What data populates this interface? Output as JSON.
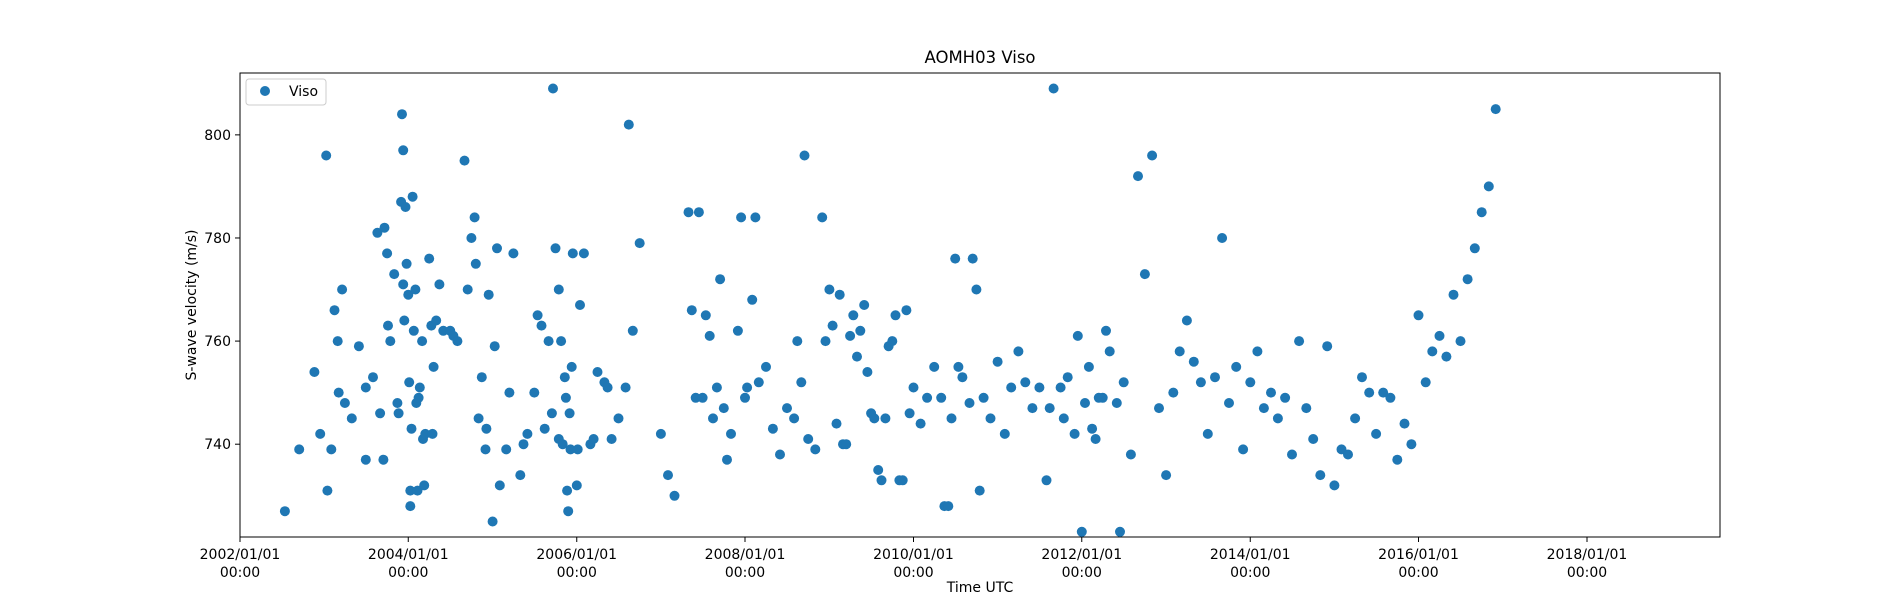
{
  "chart_data": {
    "type": "scatter",
    "title": "AOMH03 Viso",
    "xlabel": "Time UTC",
    "ylabel": "S-wave velocity (m/s)",
    "xlim": [
      "2002-01-01",
      "2019-08-01"
    ],
    "ylim": [
      722,
      812
    ],
    "grid": false,
    "legend_position": "top-left",
    "color": "#1f77b4",
    "x_ticks": [
      {
        "line1": "2002/01/01",
        "line2": "00:00",
        "date": "2002-01-01"
      },
      {
        "line1": "2004/01/01",
        "line2": "00:00",
        "date": "2004-01-01"
      },
      {
        "line1": "2006/01/01",
        "line2": "00:00",
        "date": "2006-01-01"
      },
      {
        "line1": "2008/01/01",
        "line2": "00:00",
        "date": "2008-01-01"
      },
      {
        "line1": "2010/01/01",
        "line2": "00:00",
        "date": "2010-01-01"
      },
      {
        "line1": "2012/01/01",
        "line2": "00:00",
        "date": "2012-01-01"
      },
      {
        "line1": "2014/01/01",
        "line2": "00:00",
        "date": "2014-01-01"
      },
      {
        "line1": "2016/01/01",
        "line2": "00:00",
        "date": "2016-01-01"
      },
      {
        "line1": "2018/01/01",
        "line2": "00:00",
        "date": "2018-01-01"
      }
    ],
    "y_ticks": [
      740,
      760,
      780,
      800
    ],
    "series": [
      {
        "name": "Viso",
        "points": [
          [
            "2002-07-15",
            727
          ],
          [
            "2002-09-15",
            739
          ],
          [
            "2002-11-20",
            754
          ],
          [
            "2002-12-15",
            742
          ],
          [
            "2003-01-10",
            796
          ],
          [
            "2003-01-15",
            731
          ],
          [
            "2003-02-01",
            739
          ],
          [
            "2003-02-15",
            766
          ],
          [
            "2003-03-01",
            760
          ],
          [
            "2003-03-05",
            750
          ],
          [
            "2003-03-20",
            770
          ],
          [
            "2003-04-01",
            748
          ],
          [
            "2003-05-01",
            745
          ],
          [
            "2003-06-01",
            759
          ],
          [
            "2003-07-01",
            737
          ],
          [
            "2003-07-01",
            751
          ],
          [
            "2003-08-01",
            753
          ],
          [
            "2003-08-20",
            781
          ],
          [
            "2003-09-01",
            746
          ],
          [
            "2003-09-15",
            737
          ],
          [
            "2003-09-20",
            782
          ],
          [
            "2003-10-01",
            777
          ],
          [
            "2003-10-05",
            763
          ],
          [
            "2003-10-15",
            760
          ],
          [
            "2003-11-01",
            773
          ],
          [
            "2003-11-15",
            748
          ],
          [
            "2003-11-20",
            746
          ],
          [
            "2003-12-01",
            787
          ],
          [
            "2003-12-05",
            804
          ],
          [
            "2003-12-10",
            797
          ],
          [
            "2003-12-10",
            771
          ],
          [
            "2003-12-15",
            764
          ],
          [
            "2003-12-20",
            786
          ],
          [
            "2003-12-25",
            775
          ],
          [
            "2004-01-01",
            769
          ],
          [
            "2004-01-05",
            752
          ],
          [
            "2004-01-10",
            731
          ],
          [
            "2004-01-10",
            728
          ],
          [
            "2004-01-15",
            743
          ],
          [
            "2004-01-20",
            788
          ],
          [
            "2004-01-25",
            762
          ],
          [
            "2004-02-01",
            770
          ],
          [
            "2004-02-05",
            748
          ],
          [
            "2004-02-10",
            731
          ],
          [
            "2004-02-15",
            749
          ],
          [
            "2004-02-20",
            751
          ],
          [
            "2004-03-01",
            760
          ],
          [
            "2004-03-05",
            741
          ],
          [
            "2004-03-10",
            732
          ],
          [
            "2004-03-15",
            742
          ],
          [
            "2004-04-01",
            776
          ],
          [
            "2004-04-10",
            763
          ],
          [
            "2004-04-15",
            742
          ],
          [
            "2004-04-20",
            755
          ],
          [
            "2004-05-01",
            764
          ],
          [
            "2004-05-15",
            771
          ],
          [
            "2004-06-01",
            762
          ],
          [
            "2004-07-01",
            762
          ],
          [
            "2004-07-15",
            761
          ],
          [
            "2004-08-01",
            760
          ],
          [
            "2004-09-01",
            795
          ],
          [
            "2004-09-15",
            770
          ],
          [
            "2004-10-01",
            780
          ],
          [
            "2004-10-15",
            784
          ],
          [
            "2004-10-20",
            775
          ],
          [
            "2004-11-01",
            745
          ],
          [
            "2004-11-15",
            753
          ],
          [
            "2004-12-01",
            739
          ],
          [
            "2004-12-05",
            743
          ],
          [
            "2004-12-15",
            769
          ],
          [
            "2005-01-01",
            725
          ],
          [
            "2005-01-10",
            759
          ],
          [
            "2005-01-20",
            778
          ],
          [
            "2005-02-01",
            732
          ],
          [
            "2005-03-01",
            739
          ],
          [
            "2005-03-15",
            750
          ],
          [
            "2005-04-01",
            777
          ],
          [
            "2005-05-01",
            734
          ],
          [
            "2005-05-15",
            740
          ],
          [
            "2005-06-01",
            742
          ],
          [
            "2005-07-01",
            750
          ],
          [
            "2005-07-15",
            765
          ],
          [
            "2005-08-01",
            763
          ],
          [
            "2005-08-15",
            743
          ],
          [
            "2005-09-01",
            760
          ],
          [
            "2005-09-15",
            746
          ],
          [
            "2005-09-20",
            809
          ],
          [
            "2005-10-01",
            778
          ],
          [
            "2005-10-15",
            770
          ],
          [
            "2005-10-15",
            741
          ],
          [
            "2005-10-25",
            760
          ],
          [
            "2005-11-01",
            740
          ],
          [
            "2005-11-10",
            753
          ],
          [
            "2005-11-15",
            749
          ],
          [
            "2005-11-20",
            731
          ],
          [
            "2005-11-25",
            727
          ],
          [
            "2005-12-01",
            746
          ],
          [
            "2005-12-05",
            739
          ],
          [
            "2005-12-10",
            755
          ],
          [
            "2005-12-15",
            777
          ],
          [
            "2006-01-01",
            732
          ],
          [
            "2006-01-05",
            739
          ],
          [
            "2006-01-15",
            767
          ],
          [
            "2006-02-01",
            777
          ],
          [
            "2006-03-01",
            740
          ],
          [
            "2006-03-15",
            741
          ],
          [
            "2006-04-01",
            754
          ],
          [
            "2006-05-01",
            752
          ],
          [
            "2006-05-15",
            751
          ],
          [
            "2006-06-01",
            741
          ],
          [
            "2006-07-01",
            745
          ],
          [
            "2006-08-01",
            751
          ],
          [
            "2006-08-15",
            802
          ],
          [
            "2006-09-01",
            762
          ],
          [
            "2006-10-01",
            779
          ],
          [
            "2007-01-01",
            742
          ],
          [
            "2007-02-01",
            734
          ],
          [
            "2007-03-01",
            730
          ],
          [
            "2007-05-01",
            785
          ],
          [
            "2007-05-15",
            766
          ],
          [
            "2007-06-01",
            749
          ],
          [
            "2007-06-15",
            785
          ],
          [
            "2007-07-01",
            749
          ],
          [
            "2007-07-15",
            765
          ],
          [
            "2007-08-01",
            761
          ],
          [
            "2007-08-15",
            745
          ],
          [
            "2007-09-01",
            751
          ],
          [
            "2007-09-15",
            772
          ],
          [
            "2007-10-01",
            747
          ],
          [
            "2007-10-15",
            737
          ],
          [
            "2007-11-01",
            742
          ],
          [
            "2007-12-01",
            762
          ],
          [
            "2007-12-15",
            784
          ],
          [
            "2008-01-01",
            749
          ],
          [
            "2008-01-10",
            751
          ],
          [
            "2008-02-01",
            768
          ],
          [
            "2008-02-15",
            784
          ],
          [
            "2008-03-01",
            752
          ],
          [
            "2008-04-01",
            755
          ],
          [
            "2008-05-01",
            743
          ],
          [
            "2008-06-01",
            738
          ],
          [
            "2008-07-01",
            747
          ],
          [
            "2008-08-01",
            745
          ],
          [
            "2008-08-15",
            760
          ],
          [
            "2008-09-01",
            752
          ],
          [
            "2008-09-15",
            796
          ],
          [
            "2008-10-01",
            741
          ],
          [
            "2008-11-01",
            739
          ],
          [
            "2008-12-01",
            784
          ],
          [
            "2008-12-15",
            760
          ],
          [
            "2009-01-01",
            770
          ],
          [
            "2009-01-15",
            763
          ],
          [
            "2009-02-01",
            744
          ],
          [
            "2009-02-15",
            769
          ],
          [
            "2009-03-01",
            740
          ],
          [
            "2009-03-15",
            740
          ],
          [
            "2009-04-01",
            761
          ],
          [
            "2009-04-15",
            765
          ],
          [
            "2009-05-01",
            757
          ],
          [
            "2009-05-15",
            762
          ],
          [
            "2009-06-01",
            767
          ],
          [
            "2009-06-15",
            754
          ],
          [
            "2009-07-01",
            746
          ],
          [
            "2009-07-15",
            745
          ],
          [
            "2009-08-01",
            735
          ],
          [
            "2009-08-15",
            733
          ],
          [
            "2009-09-01",
            745
          ],
          [
            "2009-09-15",
            759
          ],
          [
            "2009-10-01",
            760
          ],
          [
            "2009-10-15",
            765
          ],
          [
            "2009-11-01",
            733
          ],
          [
            "2009-11-15",
            733
          ],
          [
            "2009-12-01",
            766
          ],
          [
            "2009-12-15",
            746
          ],
          [
            "2010-01-01",
            751
          ],
          [
            "2010-02-01",
            744
          ],
          [
            "2010-03-01",
            749
          ],
          [
            "2010-04-01",
            755
          ],
          [
            "2010-05-01",
            749
          ],
          [
            "2010-05-15",
            728
          ],
          [
            "2010-06-01",
            728
          ],
          [
            "2010-06-15",
            745
          ],
          [
            "2010-07-01",
            776
          ],
          [
            "2010-07-15",
            755
          ],
          [
            "2010-08-01",
            753
          ],
          [
            "2010-09-01",
            748
          ],
          [
            "2010-09-15",
            776
          ],
          [
            "2010-10-01",
            770
          ],
          [
            "2010-10-15",
            731
          ],
          [
            "2010-11-01",
            749
          ],
          [
            "2010-12-01",
            745
          ],
          [
            "2011-01-01",
            756
          ],
          [
            "2011-02-01",
            742
          ],
          [
            "2011-03-01",
            751
          ],
          [
            "2011-04-01",
            758
          ],
          [
            "2011-05-01",
            752
          ],
          [
            "2011-06-01",
            747
          ],
          [
            "2011-07-01",
            751
          ],
          [
            "2011-08-01",
            733
          ],
          [
            "2011-08-15",
            747
          ],
          [
            "2011-09-01",
            809
          ],
          [
            "2011-10-01",
            751
          ],
          [
            "2011-10-15",
            745
          ],
          [
            "2011-11-01",
            753
          ],
          [
            "2011-12-01",
            742
          ],
          [
            "2011-12-15",
            761
          ],
          [
            "2012-01-01",
            723
          ],
          [
            "2012-01-15",
            748
          ],
          [
            "2012-02-01",
            755
          ],
          [
            "2012-02-15",
            743
          ],
          [
            "2012-03-01",
            741
          ],
          [
            "2012-03-15",
            749
          ],
          [
            "2012-04-01",
            749
          ],
          [
            "2012-04-15",
            762
          ],
          [
            "2012-05-01",
            758
          ],
          [
            "2012-06-01",
            748
          ],
          [
            "2012-06-15",
            723
          ],
          [
            "2012-07-01",
            752
          ],
          [
            "2012-08-01",
            738
          ],
          [
            "2012-09-01",
            792
          ],
          [
            "2012-10-01",
            773
          ],
          [
            "2012-11-01",
            796
          ],
          [
            "2012-12-01",
            747
          ],
          [
            "2013-01-01",
            734
          ],
          [
            "2013-02-01",
            750
          ],
          [
            "2013-03-01",
            758
          ],
          [
            "2013-04-01",
            764
          ],
          [
            "2013-05-01",
            756
          ],
          [
            "2013-06-01",
            752
          ],
          [
            "2013-07-01",
            742
          ],
          [
            "2013-08-01",
            753
          ],
          [
            "2013-09-01",
            780
          ],
          [
            "2013-10-01",
            748
          ],
          [
            "2013-11-01",
            755
          ],
          [
            "2013-12-01",
            739
          ],
          [
            "2014-01-01",
            752
          ],
          [
            "2014-02-01",
            758
          ],
          [
            "2014-03-01",
            747
          ],
          [
            "2014-04-01",
            750
          ],
          [
            "2014-05-01",
            745
          ],
          [
            "2014-06-01",
            749
          ],
          [
            "2014-07-01",
            738
          ],
          [
            "2014-08-01",
            760
          ],
          [
            "2014-09-01",
            747
          ],
          [
            "2014-10-01",
            741
          ],
          [
            "2014-11-01",
            734
          ],
          [
            "2014-12-01",
            759
          ],
          [
            "2015-01-01",
            732
          ],
          [
            "2015-02-01",
            739
          ],
          [
            "2015-03-01",
            738
          ],
          [
            "2015-04-01",
            745
          ],
          [
            "2015-05-01",
            753
          ],
          [
            "2015-06-01",
            750
          ],
          [
            "2015-07-01",
            742
          ],
          [
            "2015-08-01",
            750
          ],
          [
            "2015-09-01",
            749
          ],
          [
            "2015-10-01",
            737
          ],
          [
            "2015-11-01",
            744
          ],
          [
            "2015-12-01",
            740
          ],
          [
            "2016-01-01",
            765
          ],
          [
            "2016-02-01",
            752
          ],
          [
            "2016-03-01",
            758
          ],
          [
            "2016-04-01",
            761
          ],
          [
            "2016-05-01",
            757
          ],
          [
            "2016-06-01",
            769
          ],
          [
            "2016-07-01",
            760
          ],
          [
            "2016-08-01",
            772
          ],
          [
            "2016-09-01",
            778
          ],
          [
            "2016-10-01",
            785
          ],
          [
            "2016-11-01",
            790
          ],
          [
            "2016-12-01",
            805
          ]
        ]
      }
    ]
  }
}
